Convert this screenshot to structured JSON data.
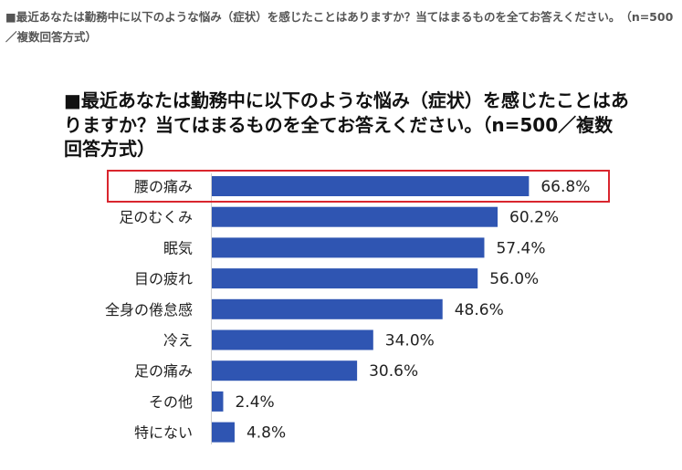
{
  "caption": "■最近あなたは勤務中に以下のような悩み（症状）を感じたことはありますか？当てはまるものを全てお答えください。　（n=500／複数回答方式）",
  "chart_data": {
    "type": "bar",
    "orientation": "horizontal",
    "title": "■最近あなたは勤務中に以下のような悩み（症状）を感じたことはありますか？当てはまるものを全てお答えください。（n=500／複数回答方式）",
    "categories": [
      "腰の痛み",
      "足のむくみ",
      "眠気",
      "目の疲れ",
      "全身の倦怠感",
      "冷え",
      "足の痛み",
      "その他",
      "特にない"
    ],
    "values": [
      66.8,
      60.2,
      57.4,
      56.0,
      48.6,
      34.0,
      30.6,
      2.4,
      4.8
    ],
    "value_labels": [
      "66.8%",
      "60.2%",
      "57.4%",
      "56.0%",
      "48.6%",
      "34.0%",
      "30.6%",
      "2.4%",
      "4.8%"
    ],
    "xlim": [
      0,
      100
    ],
    "grid": false,
    "bar_color": "#2f55b2",
    "highlight_color": "#d9262e",
    "highlighted_category": "腰の痛み"
  }
}
